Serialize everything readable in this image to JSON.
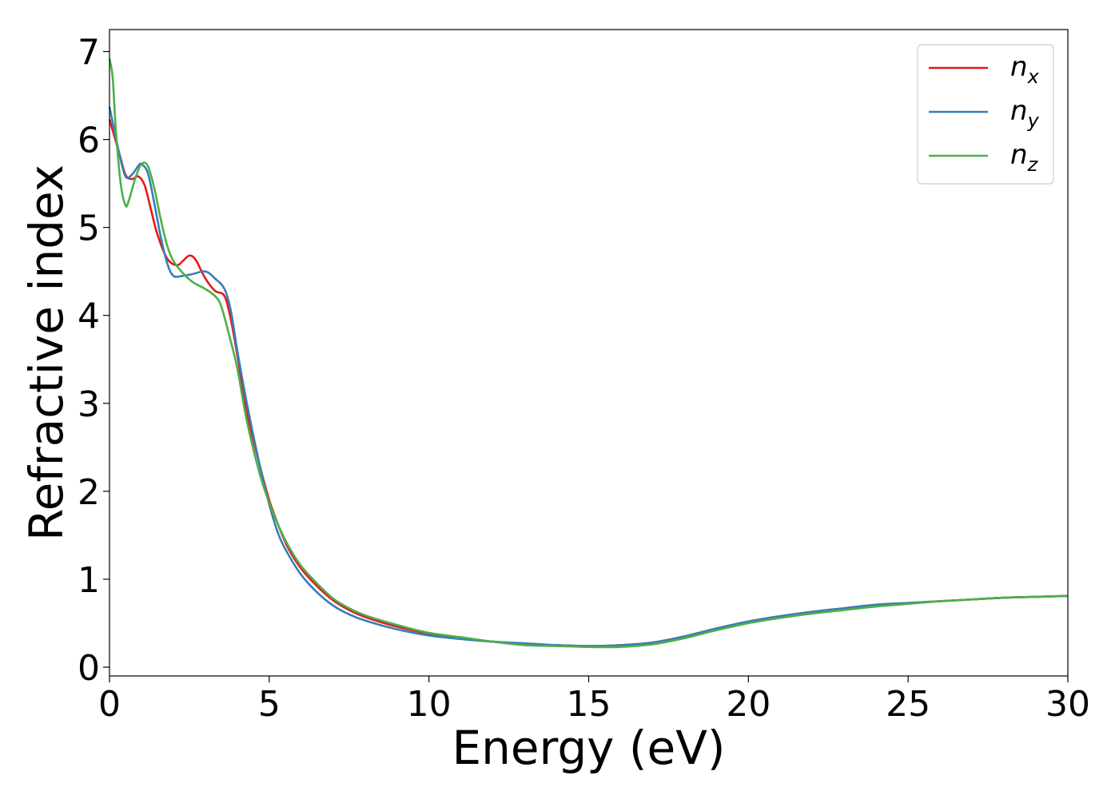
{
  "chart_data": {
    "type": "line",
    "title": "",
    "xlabel": "Energy (eV)",
    "ylabel": "Refractive index",
    "xlim": [
      0,
      30
    ],
    "ylim": [
      -0.1,
      7.25
    ],
    "xticks": [
      0,
      5,
      10,
      15,
      20,
      25,
      30
    ],
    "yticks": [
      0,
      1,
      2,
      3,
      4,
      5,
      6,
      7
    ],
    "grid": false,
    "legend_position": "top-right",
    "series": [
      {
        "name": "n_x",
        "legend_base": "n",
        "legend_sub": "x",
        "color": "#e41a1c",
        "x": [
          0,
          0.3,
          0.5,
          0.7,
          0.9,
          1.1,
          1.3,
          1.5,
          1.8,
          2.1,
          2.3,
          2.5,
          2.7,
          3.0,
          3.3,
          3.6,
          3.8,
          4.0,
          4.3,
          4.7,
          5.0,
          5.3,
          5.6,
          6.0,
          6.5,
          7.0,
          7.5,
          8.0,
          9.0,
          10.0,
          11.0,
          12.0,
          13.0,
          14.0,
          15.0,
          16.0,
          17.0,
          18.0,
          19.0,
          20.0,
          21.0,
          22.0,
          23.0,
          24.0,
          25.0,
          26.0,
          27.0,
          28.0,
          29.0,
          30.0
        ],
        "y": [
          6.23,
          5.85,
          5.6,
          5.55,
          5.58,
          5.48,
          5.2,
          4.92,
          4.65,
          4.57,
          4.62,
          4.68,
          4.63,
          4.42,
          4.28,
          4.22,
          3.95,
          3.55,
          2.9,
          2.3,
          1.9,
          1.6,
          1.35,
          1.12,
          0.92,
          0.76,
          0.65,
          0.57,
          0.46,
          0.38,
          0.33,
          0.29,
          0.27,
          0.25,
          0.24,
          0.25,
          0.28,
          0.35,
          0.44,
          0.52,
          0.58,
          0.63,
          0.67,
          0.71,
          0.73,
          0.75,
          0.77,
          0.79,
          0.8,
          0.81
        ]
      },
      {
        "name": "n_y",
        "legend_base": "n",
        "legend_sub": "y",
        "color": "#377eb8",
        "x": [
          0,
          0.3,
          0.5,
          0.7,
          0.9,
          1.0,
          1.2,
          1.4,
          1.6,
          1.8,
          2.0,
          2.3,
          2.6,
          3.0,
          3.3,
          3.6,
          3.8,
          4.0,
          4.3,
          4.7,
          5.0,
          5.3,
          5.6,
          6.0,
          6.5,
          7.0,
          7.5,
          8.0,
          9.0,
          10.0,
          11.0,
          12.0,
          13.0,
          14.0,
          15.0,
          16.0,
          17.0,
          18.0,
          19.0,
          20.0,
          21.0,
          22.0,
          23.0,
          24.0,
          25.0,
          26.0,
          27.0,
          28.0,
          29.0,
          30.0
        ],
        "y": [
          6.37,
          5.85,
          5.58,
          5.6,
          5.7,
          5.72,
          5.62,
          5.28,
          4.9,
          4.6,
          4.45,
          4.45,
          4.47,
          4.5,
          4.42,
          4.3,
          4.05,
          3.6,
          3.0,
          2.3,
          1.85,
          1.5,
          1.28,
          1.05,
          0.85,
          0.7,
          0.6,
          0.53,
          0.43,
          0.36,
          0.32,
          0.29,
          0.27,
          0.25,
          0.24,
          0.25,
          0.28,
          0.35,
          0.44,
          0.52,
          0.58,
          0.63,
          0.67,
          0.71,
          0.73,
          0.75,
          0.77,
          0.79,
          0.8,
          0.81
        ]
      },
      {
        "name": "n_z",
        "legend_base": "n",
        "legend_sub": "z",
        "color": "#4daf4a",
        "x": [
          0,
          0.1,
          0.2,
          0.35,
          0.5,
          0.6,
          0.8,
          1.0,
          1.2,
          1.4,
          1.6,
          1.8,
          2.0,
          2.3,
          2.6,
          3.0,
          3.3,
          3.5,
          3.8,
          4.0,
          4.3,
          4.7,
          5.0,
          5.3,
          5.6,
          6.0,
          6.5,
          7.0,
          7.5,
          8.0,
          9.0,
          10.0,
          11.0,
          12.0,
          13.0,
          14.0,
          15.0,
          16.0,
          17.0,
          18.0,
          19.0,
          20.0,
          21.0,
          22.0,
          23.0,
          24.0,
          25.0,
          26.0,
          27.0,
          28.0,
          29.0,
          30.0
        ],
        "y": [
          6.92,
          6.7,
          6.1,
          5.5,
          5.25,
          5.3,
          5.55,
          5.72,
          5.7,
          5.45,
          5.1,
          4.8,
          4.62,
          4.48,
          4.38,
          4.3,
          4.22,
          4.1,
          3.7,
          3.4,
          2.8,
          2.2,
          1.87,
          1.6,
          1.38,
          1.15,
          0.95,
          0.78,
          0.67,
          0.59,
          0.48,
          0.39,
          0.34,
          0.29,
          0.25,
          0.24,
          0.23,
          0.23,
          0.26,
          0.33,
          0.42,
          0.5,
          0.56,
          0.61,
          0.65,
          0.69,
          0.72,
          0.75,
          0.77,
          0.79,
          0.8,
          0.81
        ]
      }
    ]
  }
}
